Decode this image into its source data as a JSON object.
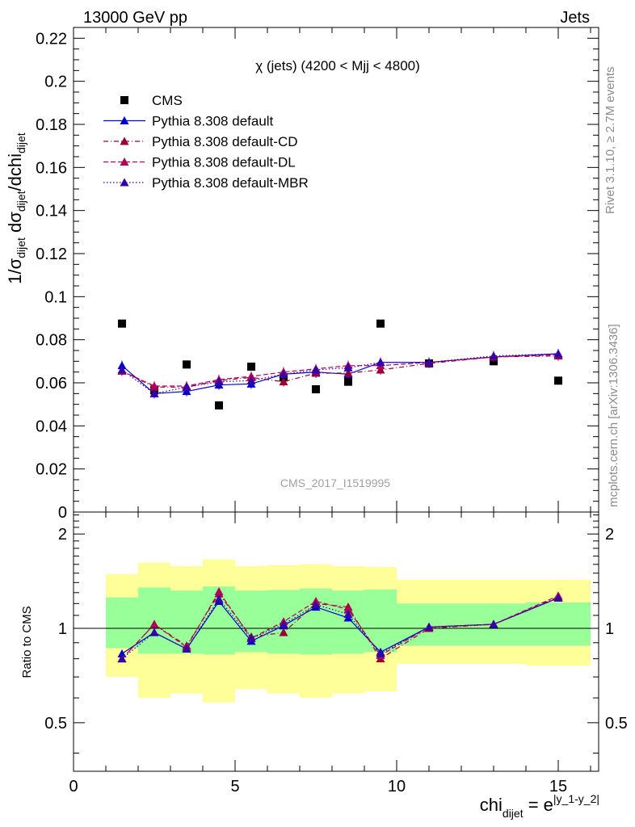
{
  "header": {
    "left": "13000 GeV pp",
    "right": "Jets"
  },
  "side_labels": {
    "rivet": "Rivet 3.1.10, ≥ 2.7M events",
    "mcplots": "mcplots.cern.ch [arXiv:1306.3436]"
  },
  "chart_data": [
    {
      "type": "scatter",
      "panel": "main",
      "title": "χ (jets) (4200 < Mjj < 4800)",
      "watermark": "CMS_2017_I1519995",
      "ylabel": "1/σ_dijet dσ_dijet/dchi_dijet",
      "ylim": [
        0,
        0.225
      ],
      "xlim": [
        0,
        16.25
      ],
      "yticks": [
        0,
        0.02,
        0.04,
        0.06,
        0.08,
        0.1,
        0.12,
        0.14,
        0.16,
        0.18,
        0.2,
        0.22
      ],
      "ytick_labels": [
        "0",
        "0.02",
        "0.04",
        "0.06",
        "0.08",
        "0.1",
        "0.12",
        "0.14",
        "0.16",
        "0.18",
        "0.2",
        "0.22"
      ],
      "legend_position": "top-left",
      "x": [
        1.5,
        2.5,
        3.5,
        4.5,
        5.5,
        6.5,
        7.5,
        8.5,
        9.5,
        11,
        13,
        15
      ],
      "series": [
        {
          "name": "CMS",
          "color": "#000000",
          "style": "square",
          "values": [
            0.0875,
            0.0565,
            0.0685,
            0.0495,
            0.0675,
            0.0625,
            0.057,
            0.0605,
            0.0875,
            0.069,
            0.07,
            0.061
          ]
        },
        {
          "name": "Pythia 8.308 default",
          "color": "#0000cc",
          "style": "solid",
          "values": [
            0.068,
            0.055,
            0.056,
            0.059,
            0.0595,
            0.064,
            0.065,
            0.064,
            0.0695,
            0.0695,
            0.072,
            0.0735
          ]
        },
        {
          "name": "Pythia 8.308 default-CD",
          "color": "#990033",
          "style": "dashdot",
          "values": [
            0.0655,
            0.058,
            0.058,
            0.061,
            0.0625,
            0.0605,
            0.0645,
            0.0645,
            0.066,
            0.069,
            0.072,
            0.0725
          ]
        },
        {
          "name": "Pythia 8.308 default-DL",
          "color": "#b3005a",
          "style": "dashed",
          "values": [
            0.0655,
            0.0585,
            0.0585,
            0.0615,
            0.063,
            0.065,
            0.0665,
            0.068,
            0.068,
            0.0695,
            0.072,
            0.073
          ]
        },
        {
          "name": "Pythia 8.308 default-MBR",
          "color": "#3300aa",
          "style": "dotted",
          "values": [
            0.066,
            0.055,
            0.058,
            0.0605,
            0.061,
            0.064,
            0.066,
            0.067,
            0.0695,
            0.0695,
            0.0725,
            0.0735
          ]
        }
      ]
    },
    {
      "type": "line",
      "panel": "ratio",
      "ylabel": "Ratio to CMS",
      "xlabel": "chi_dijet = e^|y_1-y_2|",
      "ylim": [
        0.35,
        2.35
      ],
      "xlim": [
        0,
        16.25
      ],
      "yticks": [
        0.5,
        1,
        2
      ],
      "ytick_labels": [
        "0.5",
        "1",
        "2"
      ],
      "xticks": [
        0,
        5,
        10,
        15
      ],
      "xtick_labels": [
        "0",
        "5",
        "10",
        "15"
      ],
      "reference_line": 1,
      "bands": {
        "edges": [
          1,
          2,
          3,
          4,
          5,
          6,
          7,
          8,
          9,
          10,
          12,
          14,
          16
        ],
        "inner": {
          "color": "#99ff99",
          "lo": [
            0.865,
            0.83,
            0.83,
            0.825,
            0.84,
            0.83,
            0.825,
            0.83,
            0.84,
            0.88,
            0.88,
            0.88
          ],
          "hi": [
            1.255,
            1.35,
            1.32,
            1.36,
            1.32,
            1.325,
            1.34,
            1.32,
            1.33,
            1.2,
            1.2,
            1.21
          ]
        },
        "outer": {
          "color": "#ffff99",
          "lo": [
            0.7,
            0.6,
            0.62,
            0.58,
            0.64,
            0.62,
            0.6,
            0.62,
            0.63,
            0.77,
            0.77,
            0.76
          ],
          "hi": [
            1.49,
            1.62,
            1.58,
            1.66,
            1.58,
            1.59,
            1.6,
            1.58,
            1.57,
            1.43,
            1.43,
            1.43
          ]
        }
      },
      "x": [
        1.5,
        2.5,
        3.5,
        4.5,
        5.5,
        6.5,
        7.5,
        8.5,
        9.5,
        11,
        13,
        15
      ],
      "series": [
        {
          "name": "Pythia 8.308 default",
          "color": "#0000cc",
          "style": "solid",
          "values": [
            0.83,
            0.97,
            0.86,
            1.22,
            0.91,
            1.02,
            1.17,
            1.08,
            0.84,
            1.01,
            1.03,
            1.25
          ]
        },
        {
          "name": "Pythia 8.308 default-CD",
          "color": "#990033",
          "style": "dashdot",
          "values": [
            0.8,
            1.03,
            0.88,
            1.29,
            0.94,
            0.97,
            1.2,
            1.17,
            0.8,
            1.0,
            1.03,
            1.26
          ]
        },
        {
          "name": "Pythia 8.308 default-DL",
          "color": "#b3005a",
          "style": "dashed",
          "values": [
            0.8,
            1.03,
            0.87,
            1.31,
            0.93,
            1.05,
            1.22,
            1.15,
            0.82,
            1.01,
            1.03,
            1.27
          ]
        },
        {
          "name": "Pythia 8.308 default-MBR",
          "color": "#3300aa",
          "style": "dotted",
          "values": [
            0.8,
            0.97,
            0.86,
            1.24,
            0.93,
            1.03,
            1.19,
            1.11,
            0.83,
            1.01,
            1.03,
            1.25
          ]
        }
      ]
    }
  ]
}
